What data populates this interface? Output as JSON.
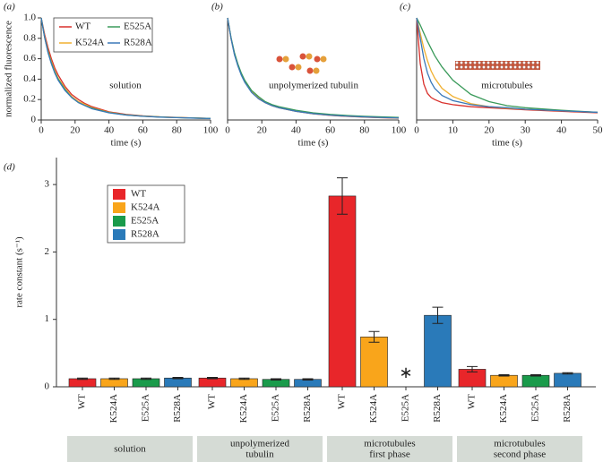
{
  "chart_data": [
    {
      "type": "line",
      "panel": "(a)",
      "annotation": "solution",
      "ylabel": "normalized fluorescence",
      "xlabel": "time (s)",
      "legend": "upper right",
      "x": [
        0,
        2,
        4,
        6,
        8,
        10,
        14,
        18,
        22,
        26,
        30,
        40,
        50,
        60,
        70,
        80,
        90,
        100
      ],
      "series": [
        {
          "name": "WT",
          "color": "#d9302c",
          "values": [
            1,
            0.84,
            0.71,
            0.6,
            0.51,
            0.44,
            0.33,
            0.25,
            0.2,
            0.16,
            0.13,
            0.08,
            0.055,
            0.04,
            0.03,
            0.025,
            0.02,
            0.015
          ]
        },
        {
          "name": "K524A",
          "color": "#f0b030",
          "values": [
            1,
            0.82,
            0.68,
            0.57,
            0.48,
            0.41,
            0.31,
            0.23,
            0.18,
            0.15,
            0.12,
            0.075,
            0.05,
            0.038,
            0.03,
            0.024,
            0.019,
            0.015
          ]
        },
        {
          "name": "E525A",
          "color": "#3a9a5a",
          "values": [
            1,
            0.81,
            0.67,
            0.56,
            0.47,
            0.4,
            0.3,
            0.22,
            0.17,
            0.14,
            0.115,
            0.072,
            0.05,
            0.037,
            0.029,
            0.023,
            0.019,
            0.015
          ]
        },
        {
          "name": "R528A",
          "color": "#3a78b8",
          "values": [
            1,
            0.81,
            0.66,
            0.55,
            0.46,
            0.39,
            0.29,
            0.22,
            0.17,
            0.14,
            0.11,
            0.07,
            0.048,
            0.036,
            0.028,
            0.023,
            0.018,
            0.014
          ]
        }
      ],
      "xlim": [
        0,
        100
      ],
      "xticks": [
        0,
        20,
        40,
        60,
        80,
        100
      ],
      "ylim": [
        0,
        1
      ],
      "yticks": [
        0,
        0.2,
        0.4,
        0.6,
        0.8,
        {
          "value": 1,
          "label": "1.0"
        }
      ]
    },
    {
      "type": "line",
      "panel": "(b)",
      "annotation": "unpolymerized tubulin",
      "xlabel": "time (s)",
      "x": [
        0,
        2,
        4,
        6,
        8,
        10,
        14,
        18,
        22,
        26,
        30,
        40,
        50,
        60,
        70,
        80,
        90,
        100
      ],
      "series": [
        {
          "name": "WT",
          "color": "#d9302c",
          "values": [
            1,
            0.8,
            0.65,
            0.54,
            0.45,
            0.38,
            0.28,
            0.21,
            0.17,
            0.14,
            0.12,
            0.085,
            0.06,
            0.045,
            0.035,
            0.028,
            0.022,
            0.018
          ]
        },
        {
          "name": "K524A",
          "color": "#f0b030",
          "values": [
            1,
            0.8,
            0.65,
            0.54,
            0.45,
            0.38,
            0.28,
            0.22,
            0.17,
            0.14,
            0.12,
            0.086,
            0.062,
            0.047,
            0.037,
            0.03,
            0.024,
            0.02
          ]
        },
        {
          "name": "E525A",
          "color": "#3a9a5a",
          "values": [
            1,
            0.81,
            0.66,
            0.55,
            0.46,
            0.39,
            0.29,
            0.23,
            0.18,
            0.15,
            0.13,
            0.095,
            0.07,
            0.055,
            0.044,
            0.036,
            0.03,
            0.025
          ]
        },
        {
          "name": "R528A",
          "color": "#3a78b8",
          "values": [
            1,
            0.8,
            0.64,
            0.53,
            0.44,
            0.37,
            0.27,
            0.21,
            0.17,
            0.14,
            0.12,
            0.085,
            0.062,
            0.047,
            0.037,
            0.03,
            0.024,
            0.02
          ]
        }
      ],
      "xlim": [
        0,
        100
      ],
      "xticks": [
        0,
        20,
        40,
        60,
        80,
        100
      ],
      "ylim": [
        0,
        1
      ]
    },
    {
      "type": "line",
      "panel": "(c)",
      "annotation": "microtubules",
      "xlabel": "time (s)",
      "x": [
        0,
        1,
        2,
        3,
        4,
        5,
        7,
        10,
        15,
        20,
        25,
        30,
        40,
        50
      ],
      "series": [
        {
          "name": "WT",
          "color": "#d9302c",
          "values": [
            1,
            0.55,
            0.35,
            0.26,
            0.22,
            0.2,
            0.17,
            0.15,
            0.13,
            0.12,
            0.11,
            0.1,
            0.085,
            0.07
          ]
        },
        {
          "name": "K524A",
          "color": "#f0b030",
          "values": [
            1,
            0.85,
            0.7,
            0.58,
            0.48,
            0.41,
            0.31,
            0.23,
            0.16,
            0.13,
            0.115,
            0.105,
            0.09,
            0.075
          ]
        },
        {
          "name": "E525A",
          "color": "#3a9a5a",
          "values": [
            1,
            0.93,
            0.85,
            0.77,
            0.7,
            0.63,
            0.52,
            0.39,
            0.25,
            0.18,
            0.14,
            0.12,
            0.095,
            0.075
          ]
        },
        {
          "name": "R528A",
          "color": "#3a78b8",
          "values": [
            1,
            0.8,
            0.6,
            0.46,
            0.37,
            0.31,
            0.24,
            0.19,
            0.15,
            0.13,
            0.12,
            0.105,
            0.09,
            0.075
          ]
        }
      ],
      "xlim": [
        0,
        50
      ],
      "xticks": [
        0,
        10,
        20,
        30,
        40,
        50
      ],
      "ylim": [
        0,
        1
      ]
    },
    {
      "type": "bar",
      "panel": "(d)",
      "ylabel": "rate constant (s⁻¹)",
      "annotation": "∗",
      "categories": [
        [
          "solution"
        ],
        [
          "unpolymerized",
          "tubulin"
        ],
        [
          "microtubules",
          "first phase"
        ],
        [
          "microtubules",
          "second phase"
        ]
      ],
      "series": [
        {
          "name": "WT",
          "color": "#e8262a",
          "values": [
            0.12,
            0.13,
            2.83,
            0.26
          ],
          "errors": [
            0.01,
            0.01,
            0.27,
            0.04
          ]
        },
        {
          "name": "K524A",
          "color": "#f9a51b",
          "values": [
            0.12,
            0.12,
            0.74,
            0.17
          ],
          "errors": [
            0.01,
            0.01,
            0.08,
            0.01
          ]
        },
        {
          "name": "E525A",
          "color": "#1a9b4b",
          "values": [
            0.12,
            0.11,
            null,
            0.17
          ],
          "errors": [
            0.01,
            0.01,
            null,
            0.01
          ]
        },
        {
          "name": "R528A",
          "color": "#2a7ab9",
          "values": [
            0.13,
            0.11,
            1.06,
            0.2
          ],
          "errors": [
            0.01,
            0.01,
            0.12,
            0.01
          ]
        }
      ],
      "ylim": [
        0,
        3.4
      ],
      "yticks": [
        0,
        1,
        2,
        3
      ]
    }
  ]
}
